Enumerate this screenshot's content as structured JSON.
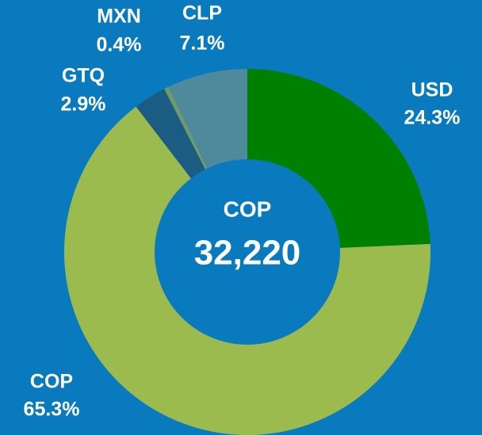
{
  "chart_data": {
    "type": "donut",
    "categories": [
      "USD",
      "COP",
      "GTQ",
      "MXN",
      "CLP"
    ],
    "values": [
      24.3,
      65.3,
      2.9,
      0.4,
      7.1
    ],
    "value_labels": [
      "24.3%",
      "65.3%",
      "2.9%",
      "0.4%",
      "7.1%"
    ],
    "colors": [
      "#008000",
      "#9bbb4f",
      "#1b5c82",
      "#6f9a6a",
      "#4e8a9c"
    ],
    "center_label": "COP",
    "center_value": "32,220"
  }
}
